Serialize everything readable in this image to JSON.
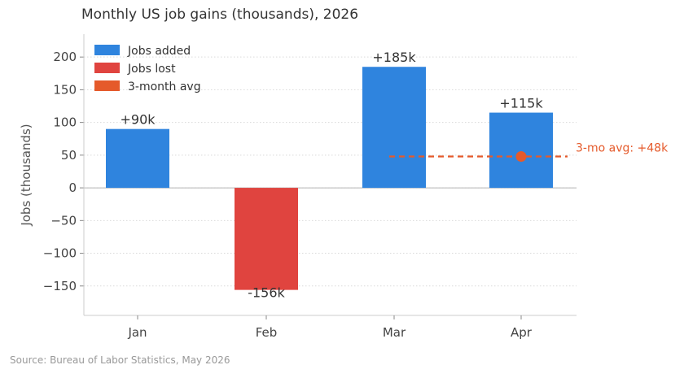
{
  "title": "Monthly US job gains (thousands), 2026",
  "source": "Source: Bureau of Labor Statistics, May 2026",
  "chart_data": {
    "type": "bar",
    "title": "Monthly US job gains (thousands), 2026",
    "xlabel": "",
    "ylabel": "Jobs (thousands)",
    "categories": [
      "Jan",
      "Feb",
      "Mar",
      "Apr"
    ],
    "values": [
      90,
      -156,
      185,
      115
    ],
    "value_labels": [
      "+90k",
      "-156k",
      "+185k",
      "+115k"
    ],
    "ylim": [
      -195,
      235
    ],
    "yticks": [
      200,
      150,
      100,
      50,
      0,
      -50,
      -100,
      -150
    ],
    "ytick_labels": [
      "200",
      "150",
      "100",
      "50",
      "0",
      "−50",
      "−100",
      "−150"
    ],
    "grid": true,
    "legend": {
      "placement": "top-left",
      "entries": [
        {
          "label": "Jobs added",
          "color": "#2f84de"
        },
        {
          "label": "Jobs lost",
          "color": "#e0443f"
        },
        {
          "label": "3-month avg",
          "color": "#e55a2b"
        }
      ]
    },
    "colors": {
      "positive": "#2f84de",
      "negative": "#e0443f",
      "average": "#e55a2b"
    },
    "average_line": {
      "value": 48,
      "spans_categories": [
        "Mar",
        "Apr"
      ],
      "label": "3-mo avg: +48k"
    }
  }
}
